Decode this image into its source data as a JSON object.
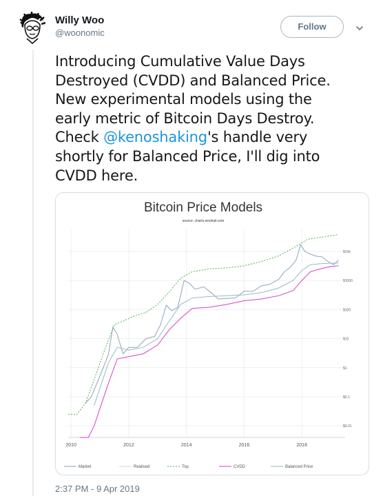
{
  "author": {
    "name": "Willy Woo",
    "handle": "@woonomic"
  },
  "follow_label": "Follow",
  "tweet": {
    "line1": "Introducing Cumulative Value Days",
    "line2": "Destroyed (CVDD) and Balanced Price.",
    "line3": "New experimental models using the",
    "line4": "early metric of Bitcoin Days Destroy.",
    "line5_pre": "Check ",
    "mention": "@kenoshaking",
    "line5_post": "'s handle very",
    "line6": "shortly for Balanced Price, I'll dig into",
    "line7": "CVDD here."
  },
  "timestamp": "2:37 PM - 9 Apr 2019",
  "chart_data": {
    "type": "line",
    "title": "Bitcoin Price Models",
    "subtitle": "source: charts.woobull.com",
    "x_ticks": [
      "2010",
      "2012",
      "2014",
      "2016",
      "2018"
    ],
    "y_scale": "log",
    "y_ticks": [
      "$10k",
      "$1000",
      "$100",
      "$10",
      "$1",
      "$0.1",
      "$0.01"
    ],
    "legend_position": "bottom",
    "series": [
      {
        "name": "Market",
        "color": "#8fa3b8",
        "x": [
          2010.5,
          2010.7,
          2010.9,
          2011.1,
          2011.3,
          2011.45,
          2011.6,
          2011.8,
          2012.0,
          2012.3,
          2012.6,
          2012.9,
          2013.1,
          2013.3,
          2013.5,
          2013.7,
          2013.92,
          2014.1,
          2014.3,
          2014.6,
          2014.9,
          2015.1,
          2015.4,
          2015.7,
          2016.0,
          2016.3,
          2016.6,
          2016.9,
          2017.2,
          2017.4,
          2017.6,
          2017.8,
          2017.96,
          2018.1,
          2018.3,
          2018.5,
          2018.7,
          2018.9,
          2019.1,
          2019.27
        ],
        "y": [
          0.06,
          0.1,
          0.3,
          0.9,
          3,
          25,
          14,
          3,
          5,
          5,
          10,
          12,
          30,
          140,
          90,
          120,
          1000,
          800,
          500,
          600,
          350,
          230,
          240,
          250,
          430,
          420,
          650,
          750,
          1100,
          2000,
          2800,
          5000,
          17000,
          10000,
          8000,
          6800,
          6500,
          4500,
          3500,
          5000
        ]
      },
      {
        "name": "Top",
        "color": "#4caf50",
        "x": [
          2009.9,
          2010.2,
          2010.5,
          2010.8,
          2011.2,
          2011.5,
          2011.8,
          2012.2,
          2012.6,
          2013.0,
          2013.4,
          2013.8,
          2014.2,
          2014.8,
          2015.4,
          2016.0,
          2016.6,
          2017.2,
          2017.8,
          2018.2,
          2018.8,
          2019.27
        ],
        "y": [
          0.025,
          0.025,
          0.06,
          0.4,
          5,
          30,
          40,
          60,
          80,
          150,
          400,
          1200,
          2000,
          2500,
          2700,
          3200,
          4500,
          7000,
          15000,
          26000,
          32000,
          38000
        ]
      },
      {
        "name": "CVDD",
        "color": "#d63ec8",
        "x": [
          2010.3,
          2010.6,
          2010.8,
          2011.0,
          2011.3,
          2011.6,
          2012.0,
          2012.5,
          2013.0,
          2013.4,
          2013.8,
          2014.2,
          2014.8,
          2015.4,
          2016.0,
          2016.6,
          2017.2,
          2017.7,
          2018.0,
          2018.3,
          2018.7,
          2019.0,
          2019.27
        ],
        "y": [
          0.004,
          0.004,
          0.01,
          0.04,
          0.3,
          2,
          2.4,
          3,
          6,
          20,
          50,
          110,
          120,
          150,
          200,
          230,
          300,
          450,
          1000,
          2000,
          2600,
          3000,
          3200
        ]
      },
      {
        "name": "Balanced Price",
        "color": "#9ab8c6",
        "x": [
          2010.8,
          2011.0,
          2011.3,
          2011.6,
          2012.0,
          2012.5,
          2013.0,
          2013.4,
          2013.8,
          2014.2,
          2014.8,
          2015.4,
          2016.0,
          2016.6,
          2017.2,
          2017.7,
          2018.0,
          2018.3,
          2018.7,
          2019.0,
          2019.27
        ],
        "y": [
          0.05,
          0.2,
          1.5,
          5,
          4,
          5,
          10,
          40,
          150,
          250,
          280,
          300,
          320,
          380,
          550,
          1000,
          2200,
          3500,
          3800,
          3900,
          4000
        ]
      },
      {
        "name": "Realised",
        "color": "#cfd8dc",
        "x": [],
        "y": []
      }
    ]
  }
}
